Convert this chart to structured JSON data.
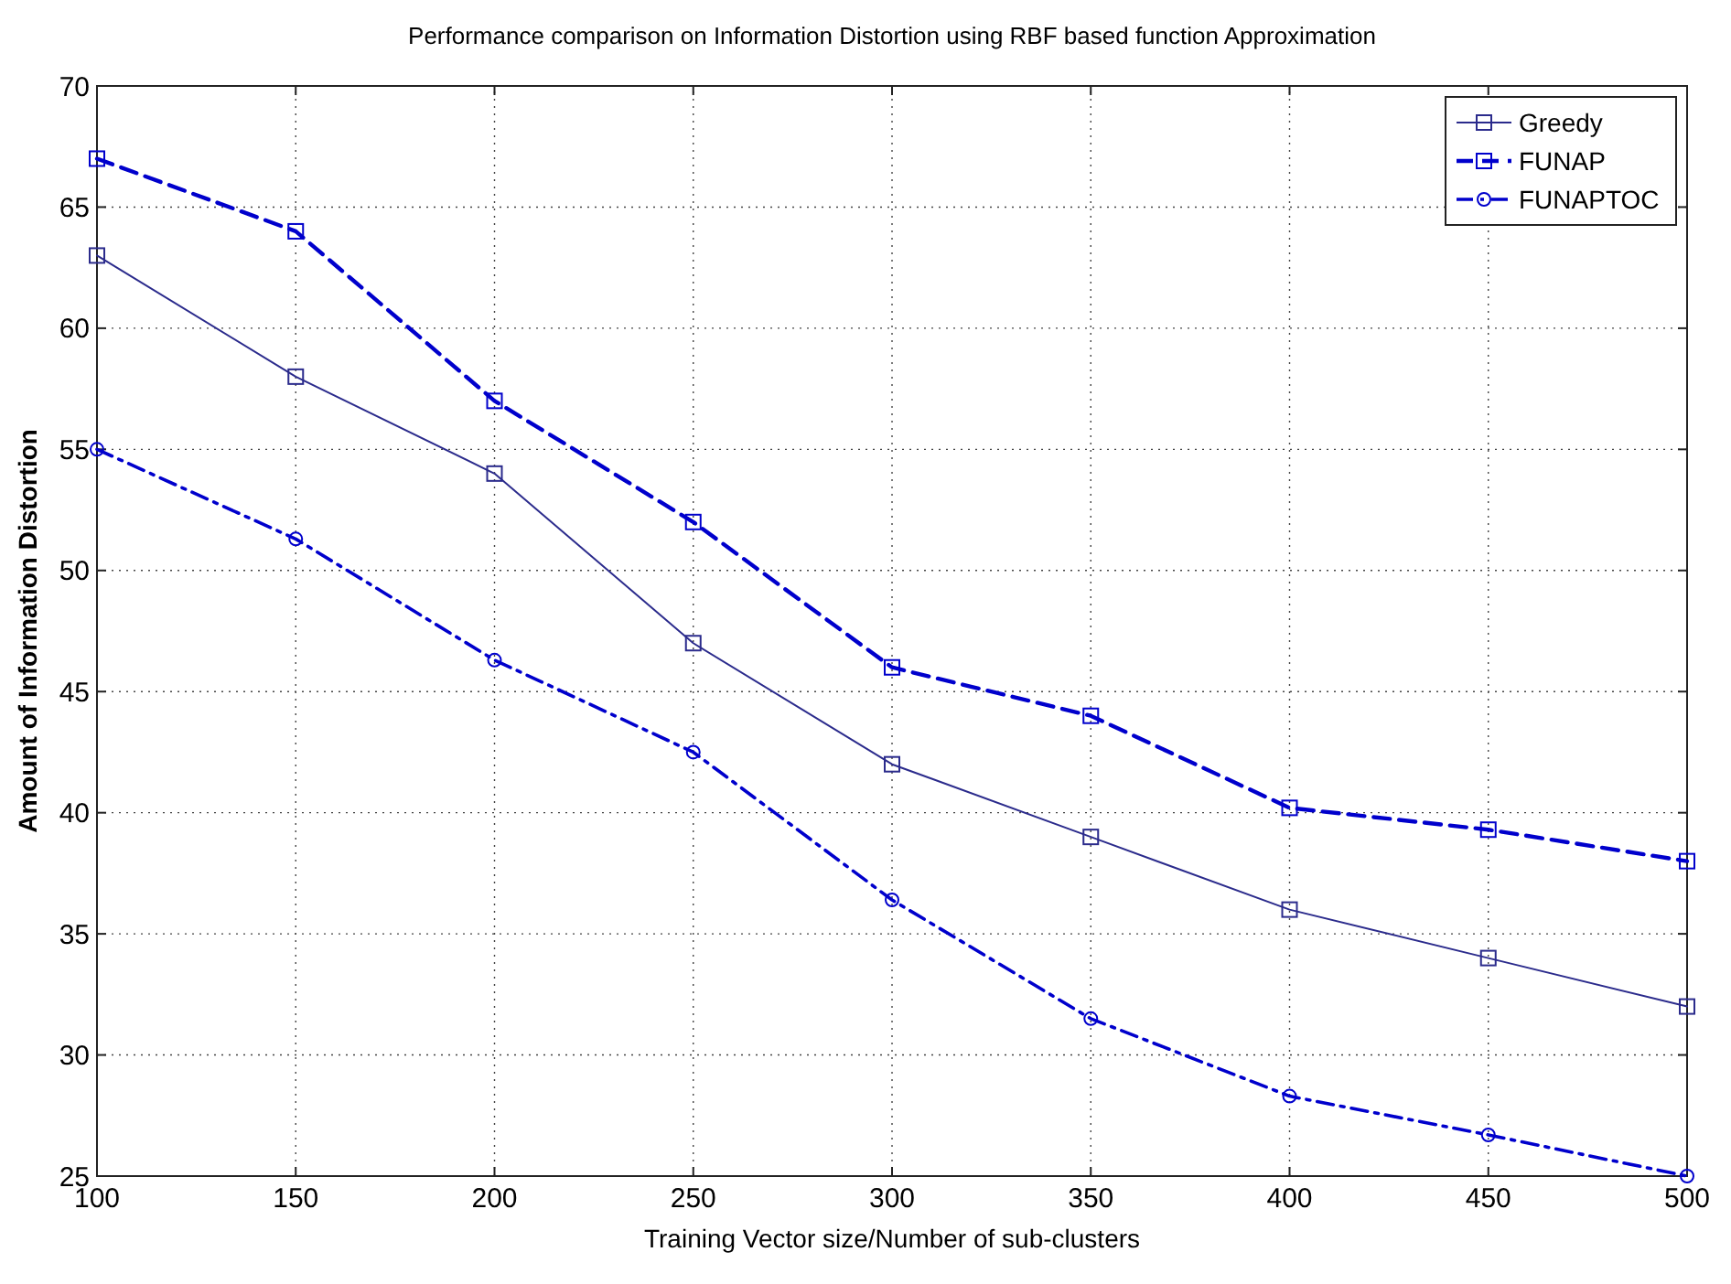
{
  "chart_data": {
    "type": "line",
    "title": "Performance comparison on Information Distortion using RBF based function Approximation",
    "xlabel": "Training Vector size/Number of sub-clusters",
    "ylabel": "Amount of Information Distortion",
    "x": [
      100,
      150,
      200,
      250,
      300,
      350,
      400,
      450,
      500
    ],
    "series": [
      {
        "name": "Greedy",
        "color": "#2b2b8c",
        "marker": "square",
        "line_style": "solid",
        "values": [
          63,
          58,
          54,
          47,
          42,
          39,
          36,
          34,
          32
        ]
      },
      {
        "name": "FUNAP",
        "color": "#0000cc",
        "marker": "square",
        "line_style": "dashed",
        "values": [
          67,
          64,
          57,
          52,
          46,
          44,
          40.2,
          39.3,
          38
        ]
      },
      {
        "name": "FUNAPTOC",
        "color": "#0000cc",
        "marker": "circle",
        "line_style": "dashdot",
        "values": [
          55,
          51.3,
          46.3,
          42.5,
          36.4,
          31.5,
          28.3,
          26.7,
          25
        ]
      }
    ],
    "xlim": [
      100,
      500
    ],
    "xticks": [
      100,
      150,
      200,
      250,
      300,
      350,
      400,
      450,
      500
    ],
    "ylim": [
      25,
      70
    ],
    "yticks": [
      25,
      30,
      35,
      40,
      45,
      50,
      55,
      60,
      65,
      70
    ],
    "grid": true,
    "legend": "top right"
  }
}
